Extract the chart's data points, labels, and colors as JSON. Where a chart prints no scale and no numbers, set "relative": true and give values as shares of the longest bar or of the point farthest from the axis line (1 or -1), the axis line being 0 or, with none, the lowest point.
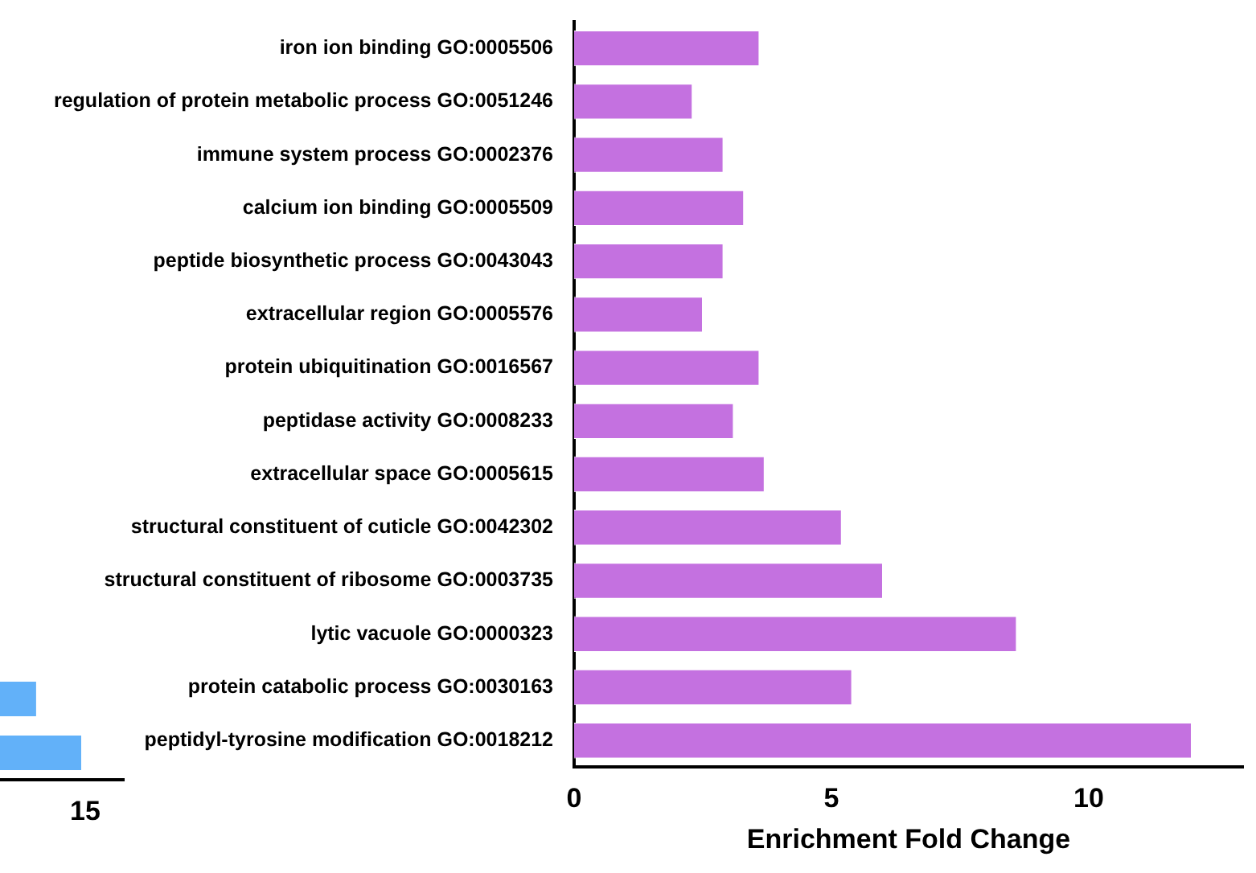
{
  "chart_data": [
    {
      "type": "bar",
      "orientation": "horizontal",
      "relative": true,
      "categories": [
        null,
        null
      ],
      "values": [
        0.45,
        1
      ],
      "color": "#62b1f9",
      "annotations": [
        "15"
      ],
      "grid": false,
      "legend": false
    },
    {
      "type": "bar",
      "orientation": "horizontal",
      "xlabel": "Enrichment Fold Change",
      "categories": [
        "iron ion binding GO:0005506",
        "regulation of protein metabolic process GO:0051246",
        "immune system process GO:0002376",
        "calcium ion binding GO:0005509",
        "peptide biosynthetic process GO:0043043",
        "extracellular region GO:0005576",
        "protein ubiquitination GO:0016567",
        "peptidase activity GO:0008233",
        "extracellular space GO:0005615",
        "structural constituent of cuticle GO:0042302",
        "structural constituent of ribosome GO:0003735",
        "lytic vacuole GO:0000323",
        "protein catabolic process GO:0030163",
        "peptidyl-tyrosine modification GO:0018212"
      ],
      "values": [
        3.6,
        2.3,
        2.9,
        3.3,
        2.9,
        2.5,
        3.6,
        3.1,
        3.7,
        5.2,
        6.0,
        8.6,
        5.4,
        12.0
      ],
      "color": "#c471e0",
      "xlim": [
        0,
        13
      ],
      "xticks": [
        0,
        5,
        10
      ],
      "grid": false,
      "legend": false
    }
  ]
}
